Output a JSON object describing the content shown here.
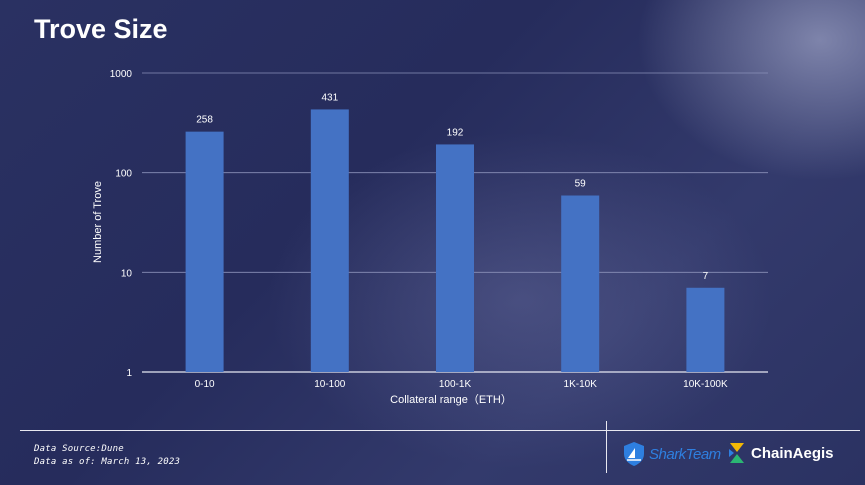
{
  "page": {
    "title": "Trove Size",
    "footnote_source": "Data Source:Dune",
    "footnote_date": "Data as of: March 13, 2023"
  },
  "logos": {
    "sharkteam": "SharkTeam",
    "chainaegis": "ChainAegis"
  },
  "colors": {
    "bar": "#4472c4",
    "background": "#2a3162",
    "sharkteam_blue": "#2e7fe0",
    "chainaegis_yellow": "#f2b705",
    "chainaegis_green": "#2bb673"
  },
  "chart_data": {
    "type": "bar",
    "title": "",
    "xlabel": "Collateral range（ETH）",
    "ylabel": "Number of Trove",
    "yscale": "log",
    "ylim": [
      1,
      1000
    ],
    "yticks": [
      "1",
      "10",
      "100",
      "1000"
    ],
    "categories": [
      "0-10",
      "10-100",
      "100-1K",
      "1K-10K",
      "10K-100K"
    ],
    "values": [
      258,
      431,
      192,
      59,
      7
    ],
    "data_labels": [
      "258",
      "431",
      "192",
      "59",
      "7"
    ],
    "grid": true,
    "legend": "none"
  }
}
